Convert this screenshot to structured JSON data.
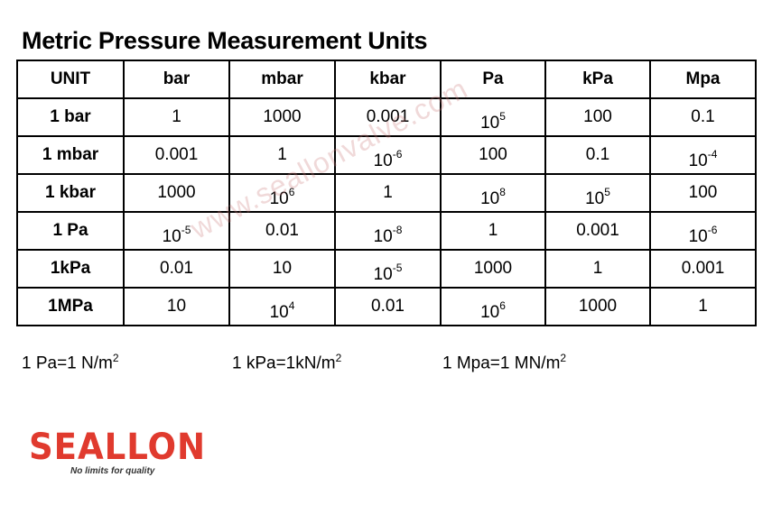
{
  "title": "Metric Pressure Measurement Units",
  "table": {
    "header": [
      "UNIT",
      "bar",
      "mbar",
      "kbar",
      "Pa",
      "kPa",
      "Mpa"
    ],
    "rows": [
      {
        "label": "1 bar",
        "cells": [
          {
            "text": "1"
          },
          {
            "text": "1000"
          },
          {
            "text": "0.001"
          },
          {
            "base": "10",
            "exp": "5"
          },
          {
            "text": "100"
          },
          {
            "text": "0.1"
          }
        ]
      },
      {
        "label": "1 mbar",
        "cells": [
          {
            "text": "0.001"
          },
          {
            "text": "1"
          },
          {
            "base": "10",
            "exp": "-6"
          },
          {
            "text": "100"
          },
          {
            "text": "0.1"
          },
          {
            "base": "10",
            "exp": "-4"
          }
        ]
      },
      {
        "label": "1 kbar",
        "cells": [
          {
            "text": "1000"
          },
          {
            "base": "10",
            "exp": "6"
          },
          {
            "text": "1"
          },
          {
            "base": "10",
            "exp": "8"
          },
          {
            "base": "10",
            "exp": "5"
          },
          {
            "text": "100"
          }
        ]
      },
      {
        "label": "1 Pa",
        "cells": [
          {
            "base": "10",
            "exp": "-5"
          },
          {
            "text": "0.01"
          },
          {
            "base": "10",
            "exp": "-8"
          },
          {
            "text": "1"
          },
          {
            "text": "0.001"
          },
          {
            "base": "10",
            "exp": "-6"
          }
        ]
      },
      {
        "label": "1kPa",
        "cells": [
          {
            "text": "0.01"
          },
          {
            "text": "10"
          },
          {
            "base": "10",
            "exp": "-5"
          },
          {
            "text": "1000"
          },
          {
            "text": "1"
          },
          {
            "text": "0.001"
          }
        ]
      },
      {
        "label": "1MPa",
        "cells": [
          {
            "text": "10"
          },
          {
            "base": "10",
            "exp": "4"
          },
          {
            "text": "0.01"
          },
          {
            "base": "10",
            "exp": "6"
          },
          {
            "text": "1000"
          },
          {
            "text": "1"
          }
        ]
      }
    ]
  },
  "notes": [
    {
      "text": "1 Pa=1 N/m",
      "sup": "2"
    },
    {
      "text": "1 kPa=1kN/m",
      "sup": "2"
    },
    {
      "text": "1 Mpa=1 MN/m",
      "sup": "2"
    }
  ],
  "watermark": "www.seallonvalve.com",
  "logo": {
    "name": "SEALLON",
    "tagline": "No limits for quality",
    "color": "#e03a2e"
  }
}
